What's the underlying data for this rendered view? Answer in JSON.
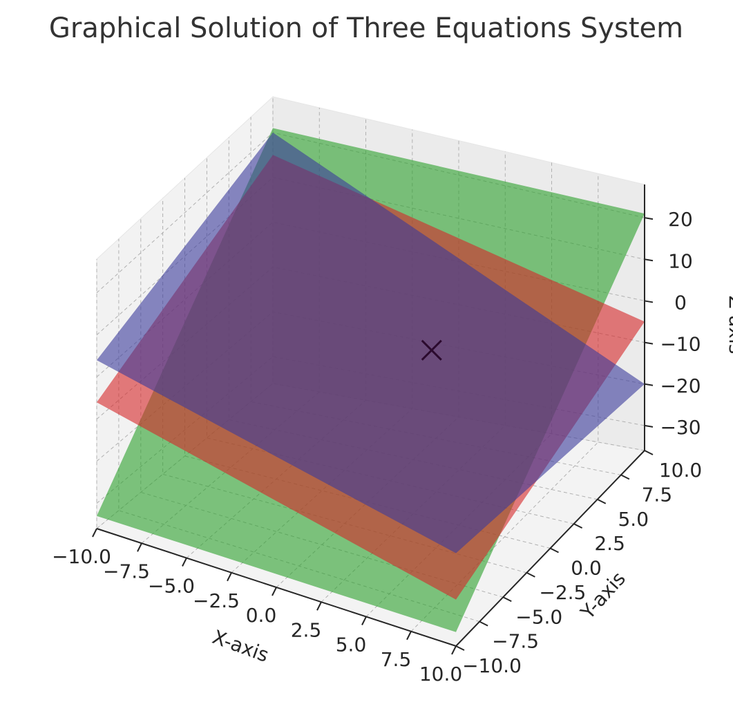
{
  "chart_data": {
    "type": "surface",
    "title": "Graphical Solution of Three Equations System",
    "xlabel": "X-axis",
    "ylabel": "Y-axis",
    "zlabel": "Z-axis",
    "xlim": [
      -10,
      10
    ],
    "ylim": [
      -10,
      10
    ],
    "zlim": [
      -36,
      28
    ],
    "xticks": [
      -10,
      -7.5,
      -5,
      -2.5,
      0,
      2.5,
      5,
      7.5,
      10
    ],
    "xtick_labels": [
      "−10.0",
      "−7.5",
      "−5.0",
      "−2.5",
      "0.0",
      "2.5",
      "5.0",
      "7.5",
      "10.0"
    ],
    "yticks": [
      -10,
      -7.5,
      -5,
      -2.5,
      0,
      2.5,
      5,
      7.5,
      10
    ],
    "ytick_labels": [
      "−10.0",
      "−7.5",
      "−5.0",
      "−2.5",
      "0.0",
      "2.5",
      "5.0",
      "7.5",
      "10.0"
    ],
    "zticks": [
      -30,
      -20,
      -10,
      0,
      10,
      20
    ],
    "ztick_labels": [
      "−30",
      "−20",
      "−10",
      "0",
      "10",
      "20"
    ],
    "grid": true,
    "surfaces": [
      {
        "color": "#2ca02c",
        "corners": {
          "xmin_ymin": -33.0,
          "xmax_ymin": -33.0,
          "xmin_ymax": 21.0,
          "xmax_ymax": 21.0
        }
      },
      {
        "color": "#d62728",
        "corners": {
          "xmin_ymin": -6.0,
          "xmax_ymin": -26.0,
          "xmin_ymax": 15.0,
          "xmax_ymax": -5.0
        }
      },
      {
        "color": "#3b3b9b",
        "corners": {
          "xmin_ymin": 4.0,
          "xmax_ymin": -16.0,
          "xmin_ymax": 20.0,
          "xmax_ymax": -20.0
        }
      }
    ],
    "solution_point": {
      "x": 2.0,
      "y": 3.0,
      "z": -5.0,
      "marker": "x",
      "color": "#2b0a2e"
    }
  }
}
